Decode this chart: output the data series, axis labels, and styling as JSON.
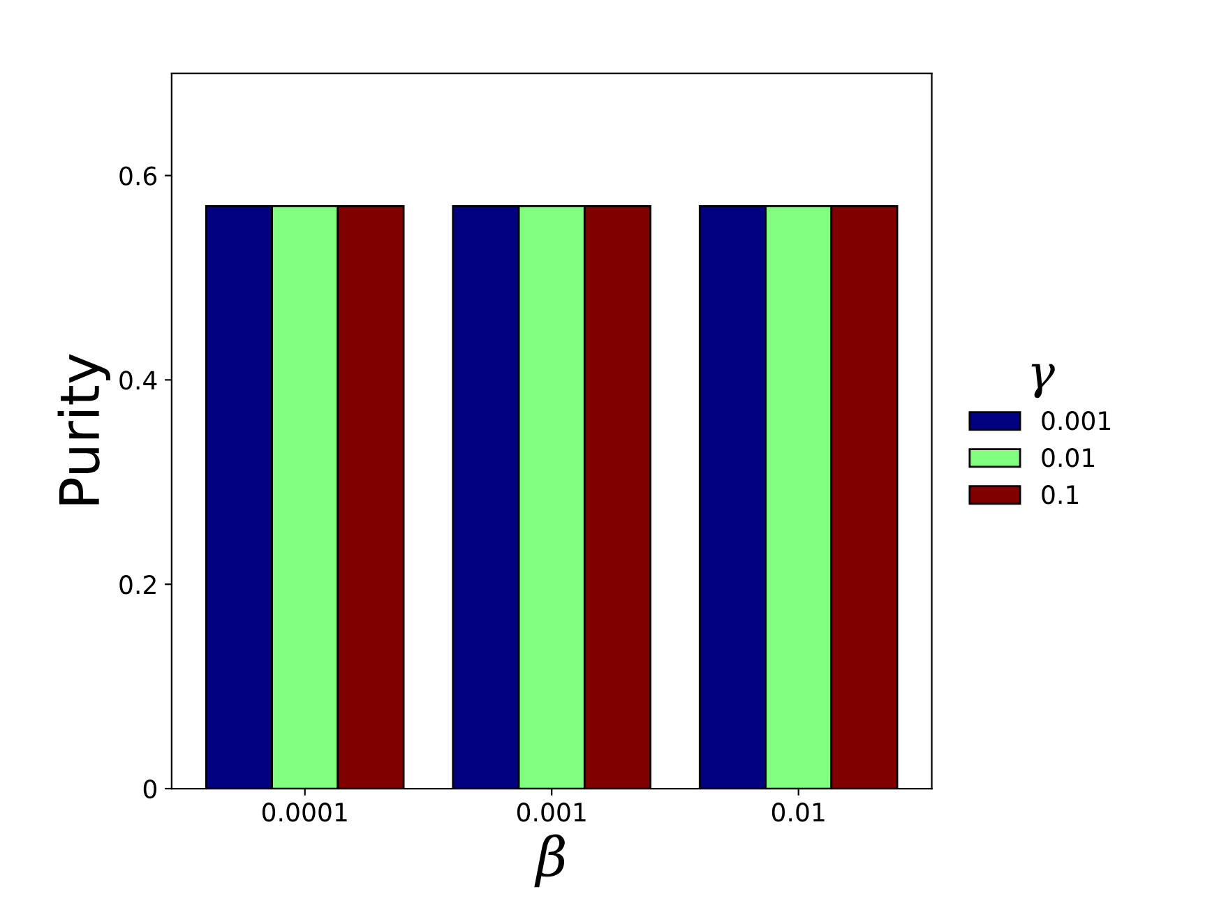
{
  "chart_data": {
    "type": "bar",
    "xlabel": "β",
    "ylabel": "Purity",
    "legend_title": "γ",
    "categories": [
      "0.0001",
      "0.001",
      "0.01"
    ],
    "series": [
      {
        "name": "0.001",
        "color": "#000080",
        "values": [
          0.57,
          0.57,
          0.57
        ]
      },
      {
        "name": "0.01",
        "color": "#80ff80",
        "values": [
          0.57,
          0.57,
          0.57
        ]
      },
      {
        "name": "0.1",
        "color": "#800000",
        "values": [
          0.57,
          0.57,
          0.57
        ]
      }
    ],
    "ylim": [
      0,
      0.7
    ],
    "yticks": [
      0,
      0.2,
      0.4,
      0.6
    ],
    "legend": "right"
  }
}
